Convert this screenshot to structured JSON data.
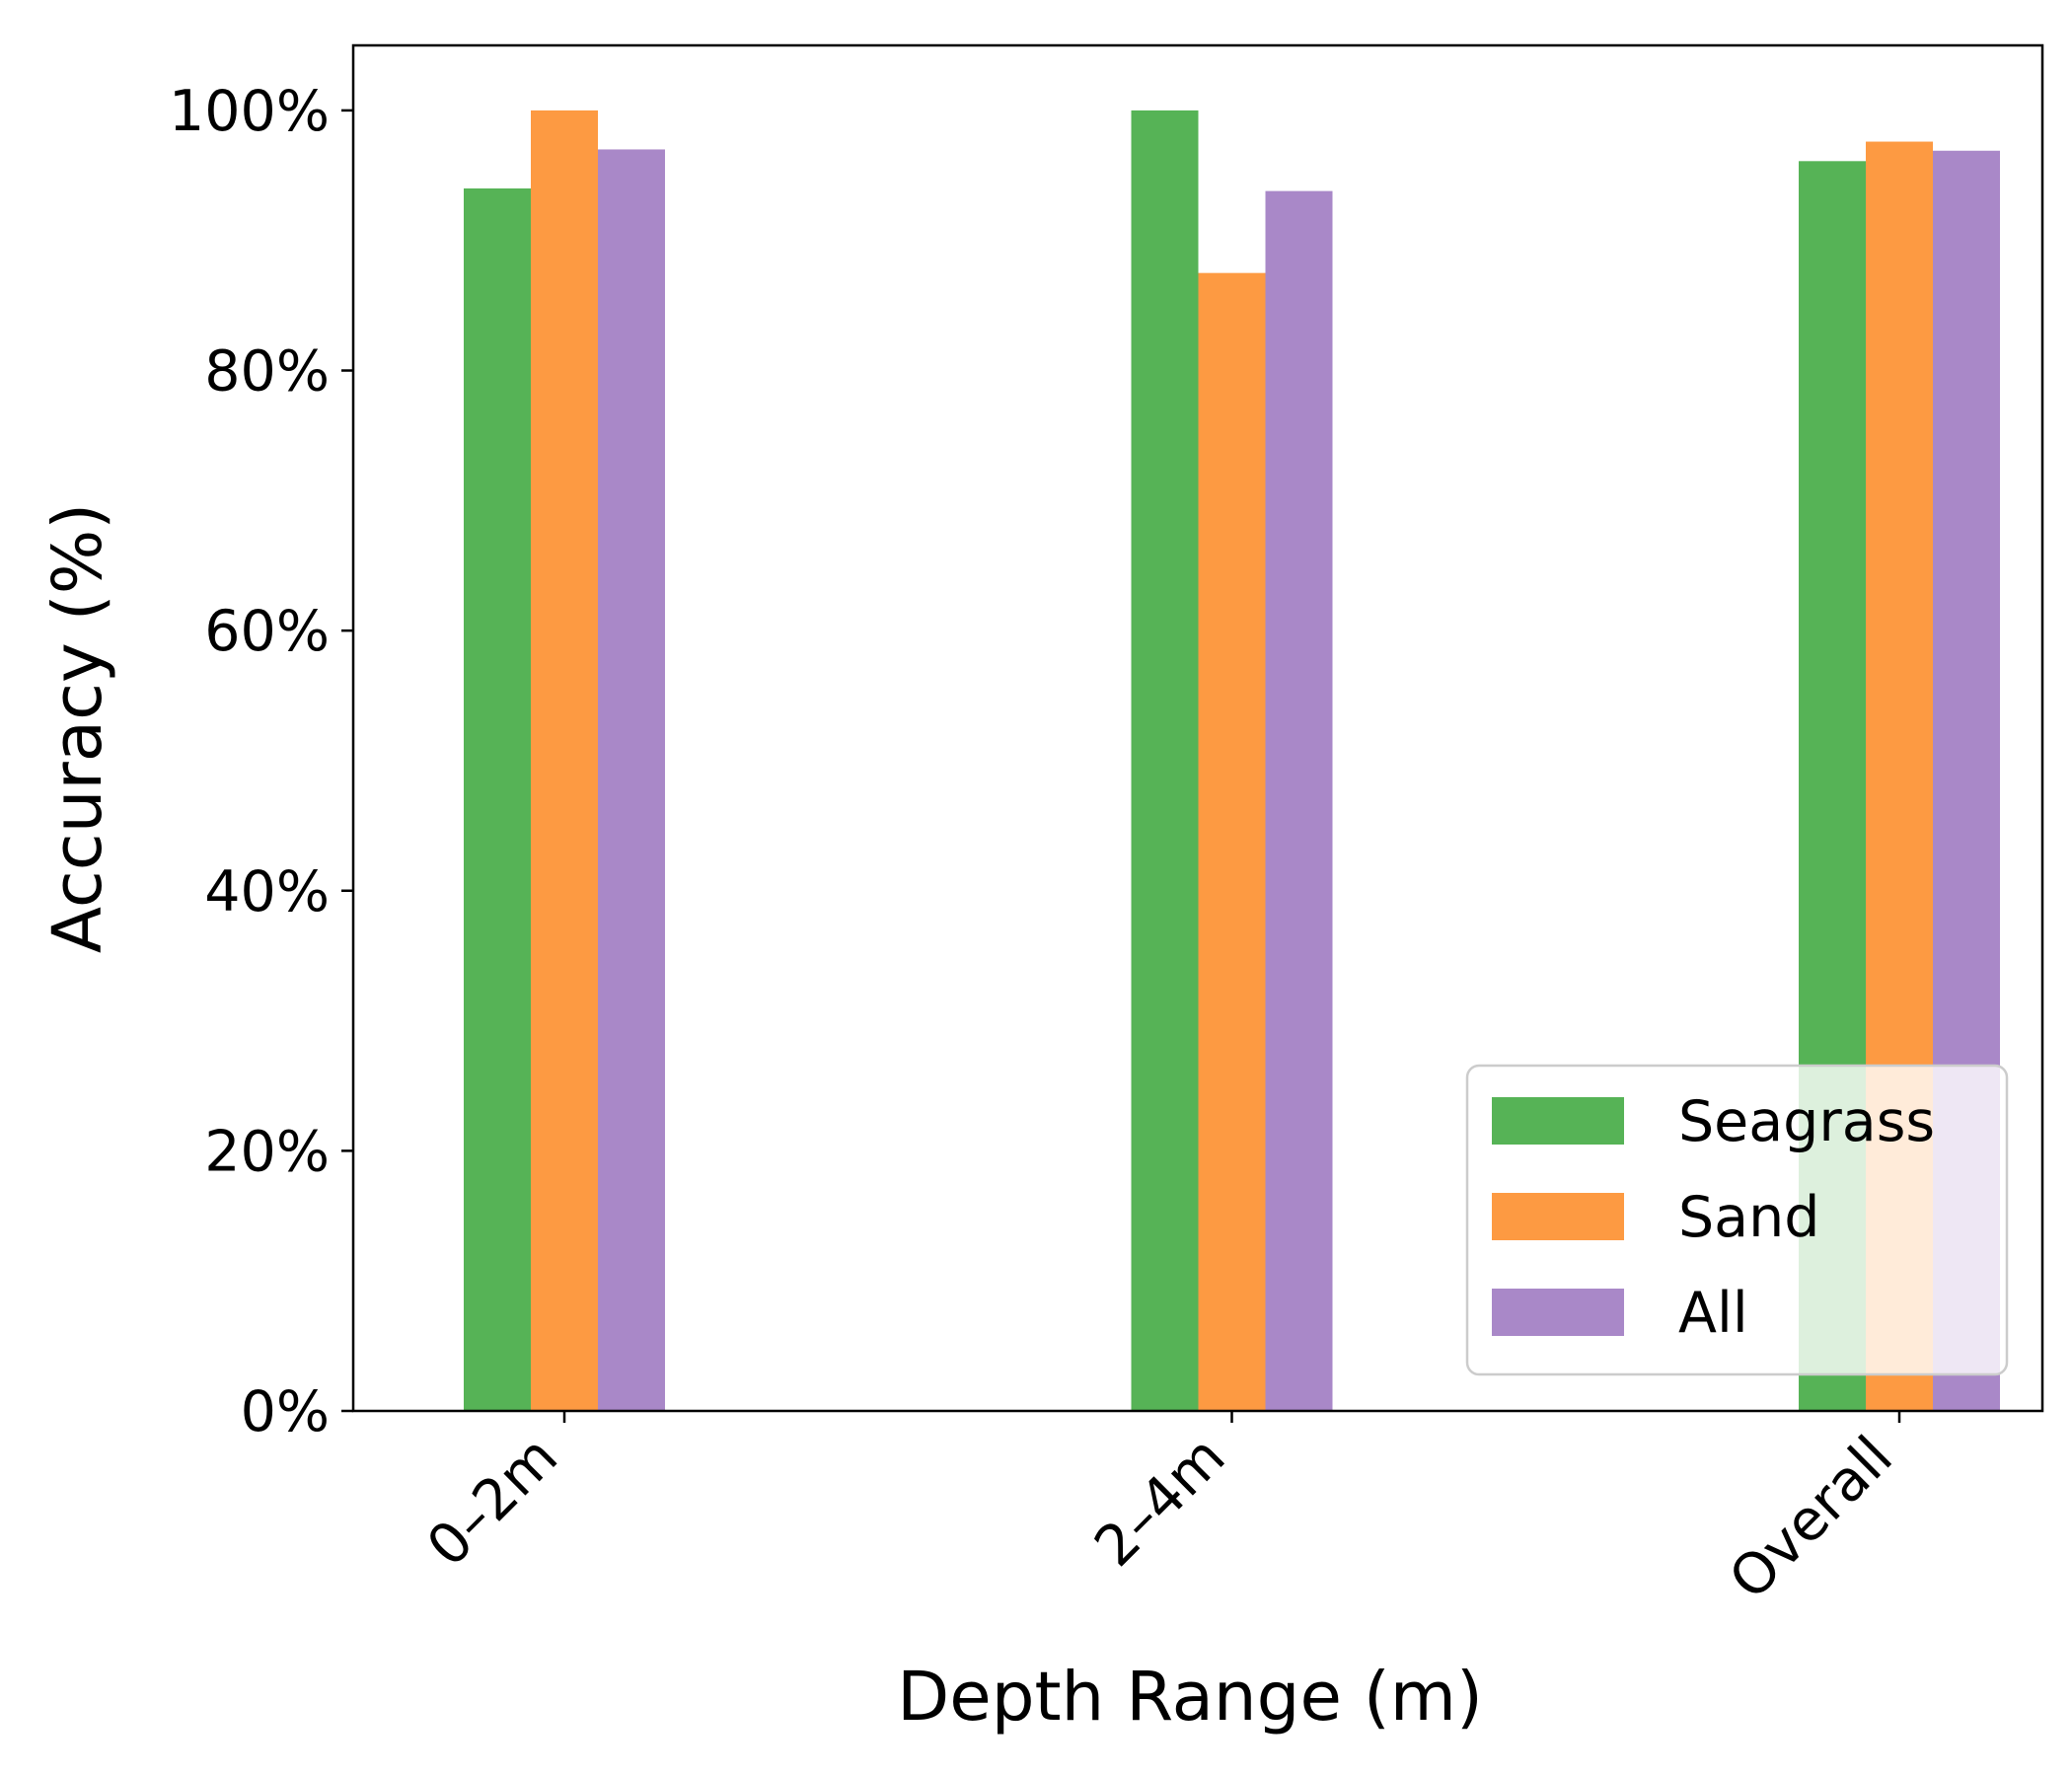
{
  "chart_data": {
    "type": "bar",
    "title": "",
    "xlabel": "Depth Range (m)",
    "ylabel": "Accuracy (%)",
    "categories": [
      "0–2m",
      "2–4m",
      "Overall"
    ],
    "series": [
      {
        "name": "Seagrass",
        "color": "#56b356",
        "values": [
          94.0,
          100.0,
          96.1
        ]
      },
      {
        "name": "Sand",
        "color": "#fd9a42",
        "values": [
          100.0,
          87.5,
          97.6
        ]
      },
      {
        "name": "All",
        "color": "#a988c8",
        "values": [
          97.0,
          93.8,
          96.9
        ]
      }
    ],
    "ylim": [
      0,
      105
    ],
    "yticks": [
      0,
      20,
      40,
      60,
      80,
      100
    ],
    "ytick_labels": [
      "0%",
      "20%",
      "40%",
      "60%",
      "80%",
      "100%"
    ],
    "grid": false,
    "legend_position": "lower-right"
  }
}
